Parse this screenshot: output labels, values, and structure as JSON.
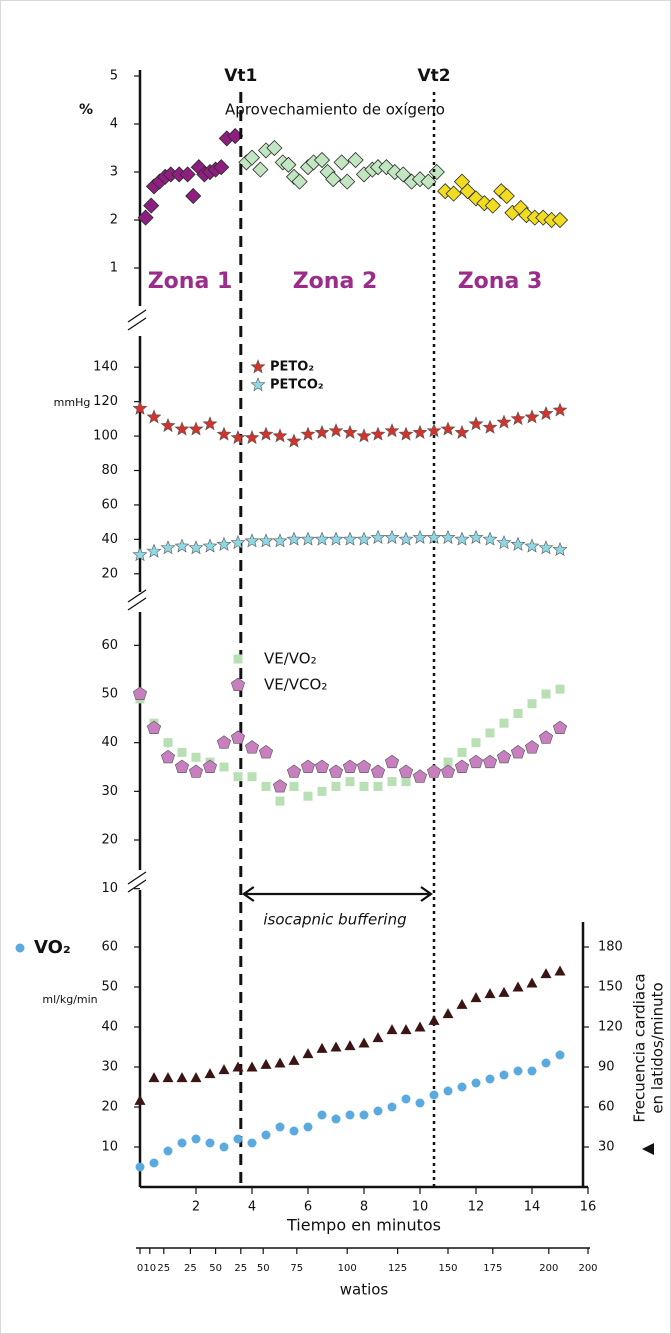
{
  "chart_data": [
    {
      "type": "scatter",
      "title": "Aprovechamiento de oxígeno",
      "ylabel": "%",
      "ylim": [
        0.5,
        5
      ],
      "yticks": [
        1,
        2,
        3,
        4,
        5
      ],
      "vlines": [
        {
          "label": "Vt1",
          "x": 3.6,
          "style": "dashed"
        },
        {
          "label": "Vt2",
          "x": 10.5,
          "style": "dotted"
        }
      ],
      "zones": [
        "Zona 1",
        "Zona 2",
        "Zona 3"
      ],
      "series": [
        {
          "marker": "diamond",
          "color": "#8e1f80",
          "x": [
            0.2,
            0.4,
            0.5,
            0.7,
            0.9,
            1.1,
            1.4,
            1.7,
            1.9,
            2.1,
            2.3,
            2.5,
            2.7,
            2.9,
            3.1,
            3.4
          ],
          "values": [
            2.05,
            2.3,
            2.7,
            2.8,
            2.9,
            2.95,
            2.95,
            2.95,
            2.5,
            3.1,
            2.95,
            3.0,
            3.05,
            3.1,
            3.7,
            3.75
          ]
        },
        {
          "marker": "diamond",
          "color": "#c2e6c2",
          "x": [
            3.8,
            4.0,
            4.3,
            4.5,
            4.8,
            5.1,
            5.3,
            5.5,
            5.7,
            6.0,
            6.2,
            6.5,
            6.7,
            6.9,
            7.2,
            7.4,
            7.7,
            8.0,
            8.3,
            8.5,
            8.8,
            9.1,
            9.4,
            9.7,
            10.0,
            10.3,
            10.6
          ],
          "values": [
            3.2,
            3.3,
            3.05,
            3.45,
            3.5,
            3.2,
            3.15,
            2.9,
            2.8,
            3.1,
            3.2,
            3.25,
            3.0,
            2.85,
            3.2,
            2.8,
            3.25,
            2.95,
            3.05,
            3.1,
            3.1,
            3.0,
            2.95,
            2.8,
            2.85,
            2.8,
            3.0
          ]
        },
        {
          "marker": "diamond",
          "color": "#f2dc1f",
          "x": [
            10.9,
            11.2,
            11.5,
            11.7,
            12.0,
            12.3,
            12.6,
            12.9,
            13.1,
            13.3,
            13.6,
            13.8,
            14.1,
            14.4,
            14.7,
            15.0
          ],
          "values": [
            2.6,
            2.55,
            2.8,
            2.6,
            2.45,
            2.35,
            2.3,
            2.6,
            2.5,
            2.15,
            2.25,
            2.1,
            2.05,
            2.05,
            2.0,
            2.0
          ]
        }
      ]
    },
    {
      "type": "scatter",
      "ylabel": "mmHg",
      "ylim": [
        10,
        150
      ],
      "yticks": [
        20,
        40,
        60,
        80,
        100,
        120,
        140
      ],
      "x": [
        0,
        0.5,
        1,
        1.5,
        2,
        2.5,
        3,
        3.5,
        4,
        4.5,
        5,
        5.5,
        6,
        6.5,
        7,
        7.5,
        8,
        8.5,
        9,
        9.5,
        10,
        10.5,
        11,
        11.5,
        12,
        12.5,
        13,
        13.5,
        14,
        14.5,
        15
      ],
      "series": [
        {
          "name": "PETO₂",
          "marker": "star",
          "color": "#d0342c",
          "values": [
            116,
            111,
            106,
            104,
            104,
            107,
            101,
            99,
            99,
            101,
            100,
            97,
            101,
            102,
            103,
            102,
            100,
            101,
            103,
            101,
            102,
            103,
            104,
            102,
            107,
            105,
            108,
            110,
            111,
            113,
            115
          ]
        },
        {
          "name": "PETCO₂",
          "marker": "star",
          "color": "#8fd8e6",
          "values": [
            31,
            33,
            35,
            36,
            35,
            36,
            37,
            38,
            39,
            39,
            39,
            40,
            40,
            40,
            40,
            40,
            40,
            41,
            41,
            40,
            41,
            41,
            41,
            40,
            41,
            40,
            38,
            37,
            36,
            35,
            34
          ]
        }
      ]
    },
    {
      "type": "scatter",
      "ylim": [
        5,
        65
      ],
      "yticks": [
        10,
        20,
        30,
        40,
        50,
        60
      ],
      "annotation": "isocapnic buffering",
      "x": [
        0,
        0.5,
        1,
        1.5,
        2,
        2.5,
        3,
        3.5,
        4,
        4.5,
        5,
        5.5,
        6,
        6.5,
        7,
        7.5,
        8,
        8.5,
        9,
        9.5,
        10,
        10.5,
        11,
        11.5,
        12,
        12.5,
        13,
        13.5,
        14,
        14.5,
        15
      ],
      "series": [
        {
          "name": "VE/VO₂",
          "marker": "square",
          "color": "#b9dfb4",
          "values": [
            49,
            44,
            40,
            38,
            37,
            36,
            35,
            33,
            33,
            31,
            28,
            31,
            29,
            30,
            31,
            32,
            31,
            31,
            32,
            32,
            33,
            34,
            36,
            38,
            40,
            42,
            44,
            46,
            48,
            50,
            51
          ]
        },
        {
          "name": "VE/VCO₂",
          "marker": "pentagon",
          "color": "#c77fc0",
          "values": [
            50,
            43,
            37,
            35,
            34,
            35,
            40,
            41,
            39,
            38,
            31,
            34,
            35,
            35,
            34,
            35,
            35,
            34,
            36,
            34,
            33,
            34,
            34,
            35,
            36,
            36,
            37,
            38,
            39,
            41,
            43
          ]
        }
      ]
    },
    {
      "type": "scatter",
      "ylabel": "ml/kg/min",
      "y2label": [
        "Frecuencia cardiaca",
        "en latidos/minuto"
      ],
      "xlabel": "Tiempo en minutos",
      "xlim": [
        0,
        16
      ],
      "xticks": [
        2,
        4,
        6,
        8,
        10,
        12,
        14,
        16
      ],
      "ylim": [
        0,
        65
      ],
      "yticks": [
        10,
        20,
        30,
        40,
        50,
        60
      ],
      "y2lim": [
        0,
        195
      ],
      "y2ticks": [
        30,
        60,
        90,
        120,
        150,
        180
      ],
      "x2label": "watios",
      "x2ticks": [
        {
          "value": 0,
          "label": "0"
        },
        {
          "value": 0.35,
          "label": "10"
        },
        {
          "value": 0.85,
          "label": "25"
        },
        {
          "value": 1.8,
          "label": "25"
        },
        {
          "value": 2.7,
          "label": "50"
        },
        {
          "value": 3.6,
          "label": "25"
        },
        {
          "value": 4.4,
          "label": "50"
        },
        {
          "value": 5.6,
          "label": "75"
        },
        {
          "value": 7.4,
          "label": "100"
        },
        {
          "value": 9.2,
          "label": "125"
        },
        {
          "value": 11.0,
          "label": "150"
        },
        {
          "value": 12.6,
          "label": "175"
        },
        {
          "value": 14.6,
          "label": "200"
        },
        {
          "value": 16,
          "label": "200"
        }
      ],
      "x": [
        0,
        0.5,
        1,
        1.5,
        2,
        2.5,
        3,
        3.5,
        4,
        4.5,
        5,
        5.5,
        6,
        6.5,
        7,
        7.5,
        8,
        8.5,
        9,
        9.5,
        10,
        10.5,
        11,
        11.5,
        12,
        12.5,
        13,
        13.5,
        14,
        14.5,
        15
      ],
      "series": [
        {
          "name": "VO₂",
          "marker": "circle",
          "color": "#5aa9df",
          "values": [
            5,
            6,
            9,
            11,
            12,
            11,
            10,
            12,
            11,
            13,
            15,
            14,
            15,
            18,
            17,
            18,
            18,
            19,
            20,
            22,
            21,
            23,
            24,
            25,
            26,
            27,
            28,
            29,
            29,
            31,
            33
          ]
        },
        {
          "marker": "triangle",
          "color": "#3b1414",
          "axis": "y2",
          "values": [
            65,
            82,
            82,
            82,
            82,
            85,
            88,
            90,
            90,
            92,
            93,
            95,
            100,
            104,
            105,
            106,
            108,
            112,
            118,
            118,
            120,
            125,
            130,
            137,
            142,
            145,
            146,
            150,
            153,
            160,
            162
          ]
        }
      ]
    }
  ]
}
